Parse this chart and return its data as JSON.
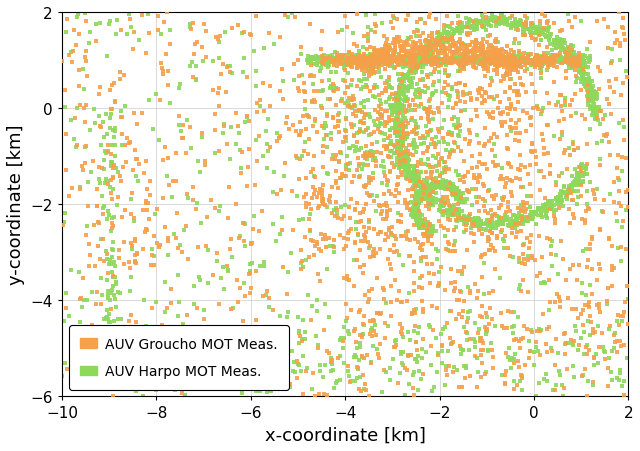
{
  "title": "",
  "xlabel": "x-coordinate [km]",
  "ylabel": "y-coordinate [km]",
  "xlim": [
    -10,
    2
  ],
  "ylim": [
    -6,
    2
  ],
  "xticks": [
    -10,
    -8,
    -6,
    -4,
    -2,
    0,
    2
  ],
  "yticks": [
    -6,
    -4,
    -2,
    0,
    2
  ],
  "groucho_color": "#F5A04A",
  "harpo_color": "#8ED85A",
  "marker_size": 5,
  "legend_labels": [
    "AUV Groucho MOT Meas.",
    "AUV Harpo MOT Meas."
  ],
  "figsize": [
    6.4,
    4.52
  ],
  "dpi": 100
}
